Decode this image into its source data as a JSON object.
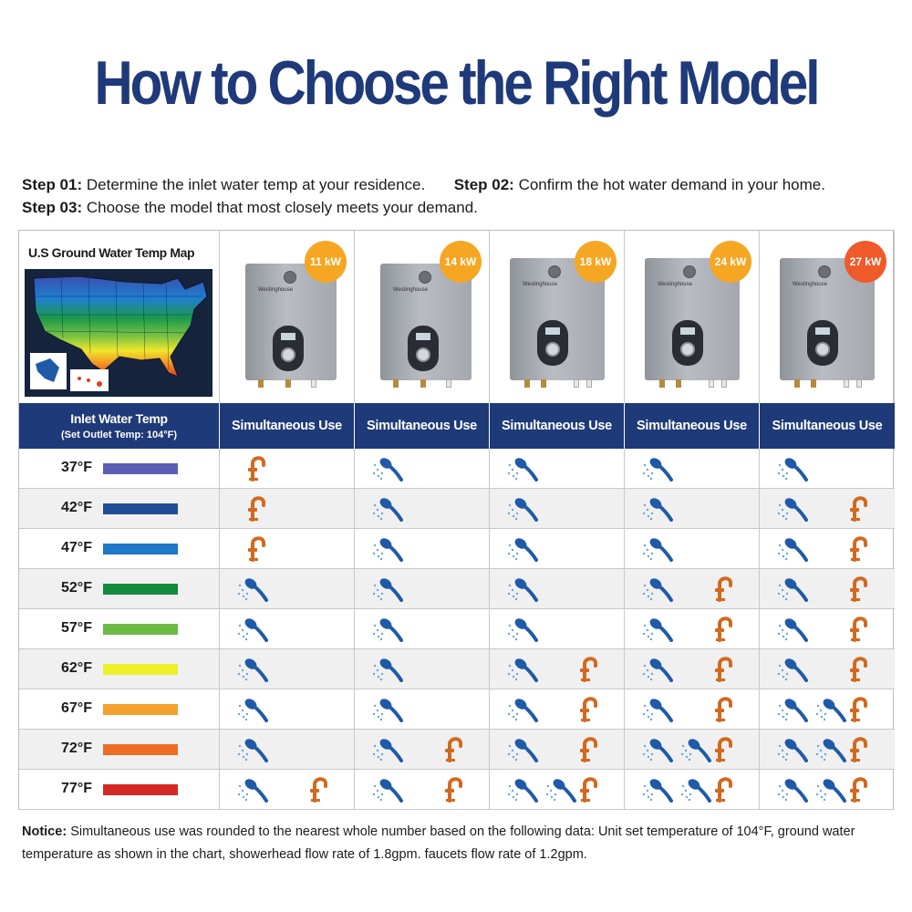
{
  "title": "How to Choose the Right Model",
  "steps": [
    {
      "label": "Step 01:",
      "text": "Determine the inlet water temp at your residence."
    },
    {
      "label": "Step 02:",
      "text": "Confirm the hot water demand in your home."
    },
    {
      "label": "Step 03:",
      "text": "Choose the model that most closely meets your demand."
    }
  ],
  "map": {
    "title": "U.S Ground Water Temp Map"
  },
  "header": {
    "inlet_title": "Inlet Water Temp",
    "inlet_sub": "(Set Outlet Temp: 104°F)",
    "column_label": "Simultaneous Use"
  },
  "models": [
    {
      "label": "11 kW",
      "badge_color": "#f5a623",
      "brand": "Westinghouse"
    },
    {
      "label": "14 kW",
      "badge_color": "#f5a623",
      "brand": "Westinghouse"
    },
    {
      "label": "18 kW",
      "badge_color": "#f5a623",
      "brand": "Westinghouse"
    },
    {
      "label": "24 kW",
      "badge_color": "#f5a623",
      "brand": "Westinghouse"
    },
    {
      "label": "27 kW",
      "badge_color": "#ef5a2b",
      "brand": "Westinghouse"
    }
  ],
  "rows": [
    {
      "temp": "37°F",
      "color": "#5a5fb5",
      "uses": [
        [
          "faucet"
        ],
        [
          "shower"
        ],
        [
          "shower"
        ],
        [
          "shower"
        ],
        [
          "shower"
        ]
      ]
    },
    {
      "temp": "42°F",
      "color": "#1f4e96",
      "uses": [
        [
          "faucet"
        ],
        [
          "shower"
        ],
        [
          "shower"
        ],
        [
          "shower"
        ],
        [
          "shower",
          "faucet"
        ]
      ]
    },
    {
      "temp": "47°F",
      "color": "#1f78c8",
      "uses": [
        [
          "faucet"
        ],
        [
          "shower"
        ],
        [
          "shower"
        ],
        [
          "shower"
        ],
        [
          "shower",
          "faucet"
        ]
      ]
    },
    {
      "temp": "52°F",
      "color": "#138a3c",
      "uses": [
        [
          "shower"
        ],
        [
          "shower"
        ],
        [
          "shower"
        ],
        [
          "shower",
          "faucet"
        ],
        [
          "shower",
          "faucet"
        ]
      ]
    },
    {
      "temp": "57°F",
      "color": "#6dbb45",
      "uses": [
        [
          "shower"
        ],
        [
          "shower"
        ],
        [
          "shower"
        ],
        [
          "shower",
          "faucet"
        ],
        [
          "shower",
          "faucet"
        ]
      ]
    },
    {
      "temp": "62°F",
      "color": "#eef02a",
      "uses": [
        [
          "shower"
        ],
        [
          "shower"
        ],
        [
          "shower",
          "faucet"
        ],
        [
          "shower",
          "faucet"
        ],
        [
          "shower",
          "faucet"
        ]
      ]
    },
    {
      "temp": "67°F",
      "color": "#f2a12c",
      "uses": [
        [
          "shower"
        ],
        [
          "shower"
        ],
        [
          "shower",
          "faucet"
        ],
        [
          "shower",
          "faucet"
        ],
        [
          "shower",
          "shower",
          "faucet"
        ]
      ]
    },
    {
      "temp": "72°F",
      "color": "#ec6d23",
      "uses": [
        [
          "shower"
        ],
        [
          "shower",
          "faucet"
        ],
        [
          "shower",
          "faucet"
        ],
        [
          "shower",
          "shower",
          "faucet"
        ],
        [
          "shower",
          "shower",
          "faucet"
        ]
      ]
    },
    {
      "temp": "77°F",
      "color": "#d42a25",
      "uses": [
        [
          "shower",
          "faucet"
        ],
        [
          "shower",
          "faucet"
        ],
        [
          "shower",
          "shower",
          "faucet"
        ],
        [
          "shower",
          "shower",
          "faucet"
        ],
        [
          "shower",
          "shower",
          "faucet"
        ]
      ]
    }
  ],
  "notice": {
    "label": "Notice:",
    "text": "Simultaneous use was rounded to the nearest whole number based on the following data: Unit set temperature of 104°F, ground water temperature as shown in the chart, showerhead flow rate of 1.8gpm. faucets flow rate of 1.2gpm."
  },
  "colors": {
    "navy": "#1e3a78",
    "shower_blue": "#1f5aa8",
    "faucet_orange": "#d2691e"
  }
}
